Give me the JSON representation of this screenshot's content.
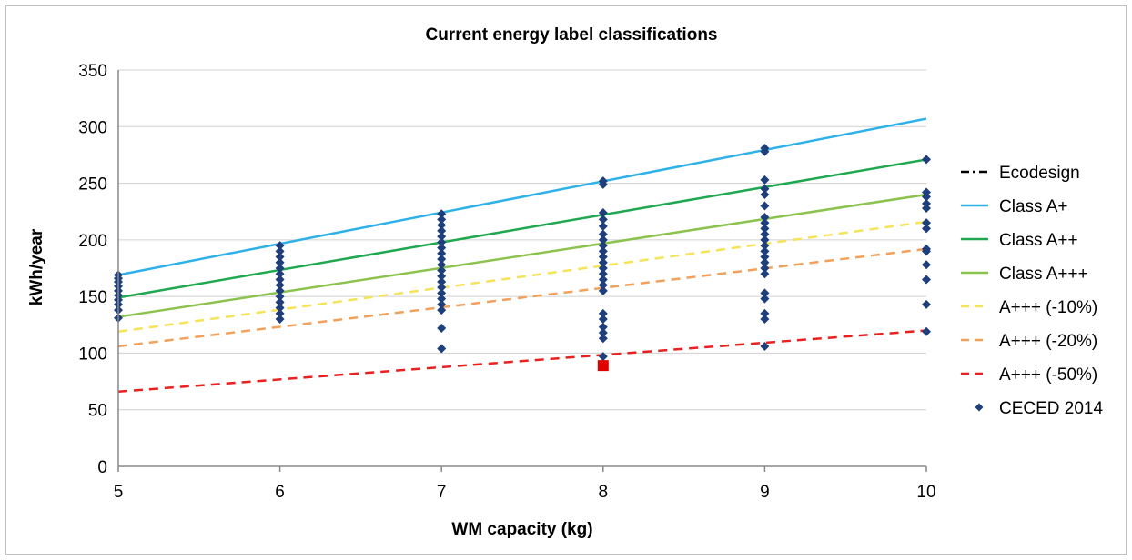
{
  "chart_data": {
    "type": "line",
    "title": "Current energy label classifications",
    "xlabel": "WM capacity (kg)",
    "ylabel": "kWh/year",
    "xlim": [
      5,
      10
    ],
    "ylim": [
      0,
      350
    ],
    "x_ticks": [
      "5",
      "6",
      "7",
      "8",
      "9",
      "10"
    ],
    "y_ticks": [
      "0",
      "50",
      "100",
      "150",
      "200",
      "250",
      "300",
      "350"
    ],
    "grid": true,
    "legend_position": "right",
    "series": [
      {
        "name": "Ecodesign",
        "style": "dashdot",
        "color": "#000000",
        "x": [],
        "y": []
      },
      {
        "name": "Class A+",
        "style": "solid",
        "color": "#2eb1e8",
        "x": [
          5,
          10
        ],
        "y": [
          169,
          307
        ]
      },
      {
        "name": "Class A++",
        "style": "solid",
        "color": "#1fa84f",
        "x": [
          5,
          10
        ],
        "y": [
          149,
          271
        ]
      },
      {
        "name": "Class A+++",
        "style": "solid",
        "color": "#8cc34e",
        "x": [
          5,
          10
        ],
        "y": [
          132,
          240
        ]
      },
      {
        "name": "A+++ (-10%)",
        "style": "dashed",
        "color": "#f5e35a",
        "x": [
          5,
          10
        ],
        "y": [
          119,
          216
        ]
      },
      {
        "name": "A+++ (-20%)",
        "style": "dashed",
        "color": "#f2a15c",
        "x": [
          5,
          10
        ],
        "y": [
          106,
          192
        ]
      },
      {
        "name": "A+++ (-50%)",
        "style": "dashed",
        "color": "#e82020",
        "x": [
          5,
          10
        ],
        "y": [
          66,
          120
        ]
      },
      {
        "name": "CECED 2014",
        "style": "marker",
        "color": "#1f3f7a",
        "points": [
          [
            5,
            131
          ],
          [
            5,
            138
          ],
          [
            5,
            143
          ],
          [
            5,
            147
          ],
          [
            5,
            151
          ],
          [
            5,
            155
          ],
          [
            5,
            159
          ],
          [
            5,
            163
          ],
          [
            5,
            166
          ],
          [
            5,
            169
          ],
          [
            6,
            130
          ],
          [
            6,
            135
          ],
          [
            6,
            140
          ],
          [
            6,
            145
          ],
          [
            6,
            150
          ],
          [
            6,
            155
          ],
          [
            6,
            160
          ],
          [
            6,
            165
          ],
          [
            6,
            170
          ],
          [
            6,
            175
          ],
          [
            6,
            180
          ],
          [
            6,
            185
          ],
          [
            6,
            190
          ],
          [
            6,
            195
          ],
          [
            7,
            104
          ],
          [
            7,
            122
          ],
          [
            7,
            138
          ],
          [
            7,
            143
          ],
          [
            7,
            148
          ],
          [
            7,
            153
          ],
          [
            7,
            158
          ],
          [
            7,
            163
          ],
          [
            7,
            168
          ],
          [
            7,
            173
          ],
          [
            7,
            178
          ],
          [
            7,
            183
          ],
          [
            7,
            188
          ],
          [
            7,
            193
          ],
          [
            7,
            198
          ],
          [
            7,
            203
          ],
          [
            7,
            208
          ],
          [
            7,
            213
          ],
          [
            7,
            218
          ],
          [
            7,
            223
          ],
          [
            8,
            97
          ],
          [
            8,
            113
          ],
          [
            8,
            118
          ],
          [
            8,
            123
          ],
          [
            8,
            130
          ],
          [
            8,
            135
          ],
          [
            8,
            155
          ],
          [
            8,
            160
          ],
          [
            8,
            165
          ],
          [
            8,
            170
          ],
          [
            8,
            175
          ],
          [
            8,
            180
          ],
          [
            8,
            185
          ],
          [
            8,
            190
          ],
          [
            8,
            195
          ],
          [
            8,
            200
          ],
          [
            8,
            205
          ],
          [
            8,
            212
          ],
          [
            8,
            218
          ],
          [
            8,
            224
          ],
          [
            8,
            249
          ],
          [
            8,
            252
          ],
          [
            9,
            106
          ],
          [
            9,
            130
          ],
          [
            9,
            135
          ],
          [
            9,
            148
          ],
          [
            9,
            153
          ],
          [
            9,
            170
          ],
          [
            9,
            175
          ],
          [
            9,
            180
          ],
          [
            9,
            185
          ],
          [
            9,
            190
          ],
          [
            9,
            195
          ],
          [
            9,
            200
          ],
          [
            9,
            205
          ],
          [
            9,
            210
          ],
          [
            9,
            215
          ],
          [
            9,
            220
          ],
          [
            9,
            230
          ],
          [
            9,
            240
          ],
          [
            9,
            245
          ],
          [
            9,
            253
          ],
          [
            9,
            278
          ],
          [
            9,
            281
          ],
          [
            10,
            119
          ],
          [
            10,
            143
          ],
          [
            10,
            165
          ],
          [
            10,
            178
          ],
          [
            10,
            190
          ],
          [
            10,
            192
          ],
          [
            10,
            210
          ],
          [
            10,
            215
          ],
          [
            10,
            228
          ],
          [
            10,
            232
          ],
          [
            10,
            238
          ],
          [
            10,
            242
          ],
          [
            10,
            271
          ]
        ]
      }
    ],
    "highlight_point": {
      "x": 8,
      "y": 89,
      "color": "#e00000",
      "marker": "square"
    }
  }
}
